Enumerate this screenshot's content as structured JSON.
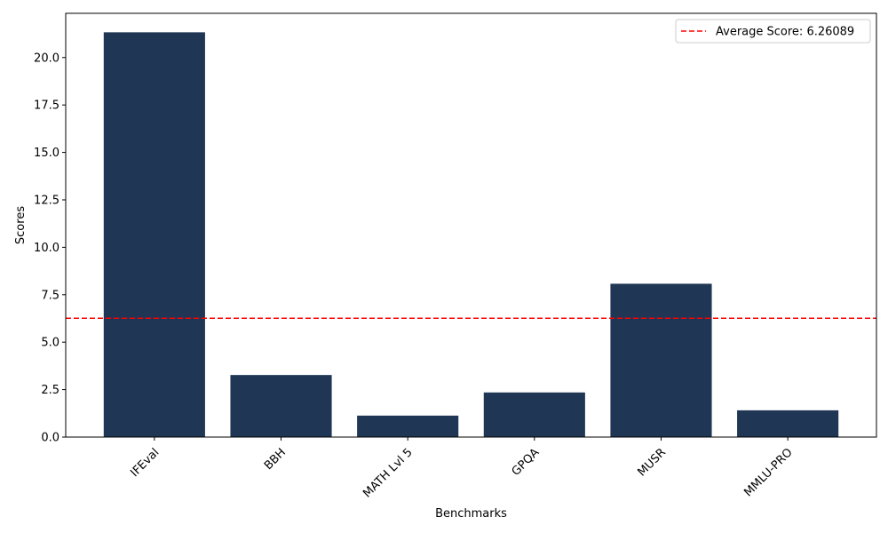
{
  "chart_data": {
    "type": "bar",
    "categories": [
      "IFEval",
      "BBH",
      "MATH Lvl 5",
      "GPQA",
      "MUSR",
      "MMLU-PRO"
    ],
    "values": [
      21.33,
      3.27,
      1.13,
      2.35,
      8.08,
      1.41
    ],
    "xlabel": "Benchmarks",
    "ylabel": "Scores",
    "ylim": [
      0,
      22.33
    ],
    "yticks": [
      0.0,
      2.5,
      5.0,
      7.5,
      10.0,
      12.5,
      15.0,
      17.5,
      20.0
    ],
    "ytick_labels": [
      "0.0",
      "2.5",
      "5.0",
      "7.5",
      "10.0",
      "12.5",
      "15.0",
      "17.5",
      "20.0"
    ],
    "average_line": {
      "value": 6.26089,
      "label": "Average Score: 6.26089",
      "color": "#ff0000",
      "style": "dashed"
    },
    "legend": {
      "placement": "top-right",
      "entries": [
        "Average Score: 6.26089"
      ]
    },
    "bar_color": "#1f3654",
    "grid": false,
    "xtick_rotation": 45
  }
}
